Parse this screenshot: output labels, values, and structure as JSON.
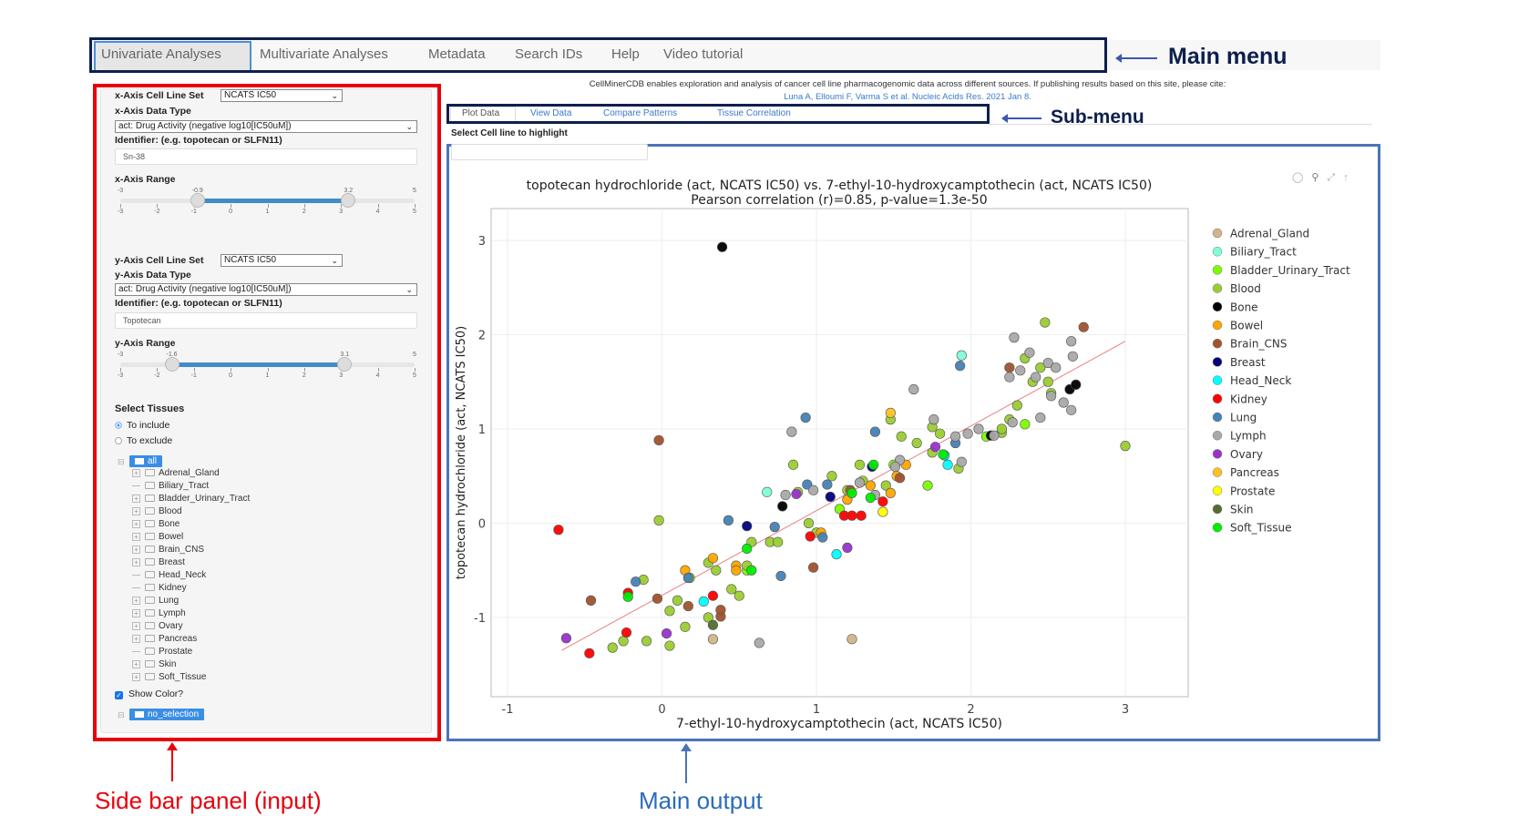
{
  "main_menu": {
    "items": [
      "Univariate Analyses",
      "Multivariate Analyses",
      "Metadata",
      "Search IDs",
      "Help",
      "Video tutorial"
    ],
    "active": "Univariate Analyses"
  },
  "annotations": {
    "main_menu": "Main menu",
    "sub_menu": "Sub-menu",
    "sidebar": "Side bar panel (input)",
    "main_output": "Main output",
    "colors": {
      "navy": "#0e1f4d",
      "red": "#e8000b",
      "blue": "#4a74b8"
    }
  },
  "header": {
    "citation_text": "CellMinerCDB enables exploration and analysis of cancer cell line pharmacogenomic data across different sources. If publishing results based on this site, please cite:",
    "citation_link": "Luna A, Elloumi F, Varma S et al. Nucleic Acids Res. 2021 Jan 8."
  },
  "sidebar": {
    "x": {
      "cell_line_set_label": "x-Axis Cell Line Set",
      "cell_line_set_value": "NCATS IC50",
      "data_type_label": "x-Axis Data Type",
      "data_type_value": "act: Drug Activity (negative log10[IC50uM])",
      "identifier_label": "Identifier: (e.g. topotecan or SLFN11)",
      "identifier_value": "Sn-38",
      "range_label": "x-Axis Range",
      "range": {
        "min": -3,
        "max": 5,
        "from": -0.9,
        "to": 3.2,
        "min_label": "-3",
        "max_label": "5",
        "from_label": "-0.9",
        "to_label": "3.2"
      }
    },
    "y": {
      "cell_line_set_label": "y-Axis Cell Line Set",
      "cell_line_set_value": "NCATS IC50",
      "data_type_label": "y-Axis Data Type",
      "data_type_value": "act: Drug Activity (negative log10[IC50uM])",
      "identifier_label": "Identifier: (e.g. topotecan or SLFN11)",
      "identifier_value": "Topotecan",
      "range_label": "y-Axis Range",
      "range": {
        "min": -3,
        "max": 5,
        "from": -1.6,
        "to": 3.1,
        "min_label": "-3",
        "max_label": "5",
        "from_label": "-1.6",
        "to_label": "3.1"
      }
    },
    "slider_ticks": [
      "-3",
      "-2",
      "-1",
      "0",
      "1",
      "2",
      "3",
      "4",
      "5"
    ],
    "select_tissues_label": "Select Tissues",
    "radio": [
      {
        "label": "To include",
        "checked": true
      },
      {
        "label": "To exclude",
        "checked": false
      }
    ],
    "tree_root": "all",
    "tree_items": [
      {
        "label": "Adrenal_Gland",
        "expandable": true
      },
      {
        "label": "Biliary_Tract",
        "expandable": false
      },
      {
        "label": "Bladder_Urinary_Tract",
        "expandable": true
      },
      {
        "label": "Blood",
        "expandable": true
      },
      {
        "label": "Bone",
        "expandable": true
      },
      {
        "label": "Bowel",
        "expandable": true
      },
      {
        "label": "Brain_CNS",
        "expandable": true
      },
      {
        "label": "Breast",
        "expandable": true
      },
      {
        "label": "Head_Neck",
        "expandable": false
      },
      {
        "label": "Kidney",
        "expandable": false
      },
      {
        "label": "Lung",
        "expandable": true
      },
      {
        "label": "Lymph",
        "expandable": true
      },
      {
        "label": "Ovary",
        "expandable": true
      },
      {
        "label": "Pancreas",
        "expandable": true
      },
      {
        "label": "Prostate",
        "expandable": false
      },
      {
        "label": "Skin",
        "expandable": true
      },
      {
        "label": "Soft_Tissue",
        "expandable": true
      }
    ],
    "show_color_label": "Show Color?",
    "show_color_checked": true,
    "highlight_root": "no_selection"
  },
  "sub_menu": {
    "tabs": [
      "Plot Data",
      "View Data",
      "Compare Patterns",
      "Tissue Correlation"
    ],
    "active": "Plot Data"
  },
  "highlight": {
    "label": "Select Cell line to highlight",
    "value": ""
  },
  "modebar": [
    "camera-icon",
    "zoom-icon",
    "autoscale-icon",
    "reset-icon"
  ],
  "chart_data": {
    "type": "scatter",
    "title": "topotecan hydrochloride (act, NCATS IC50) vs. 7-ethyl-10-hydroxycamptothecin (act, NCATS IC50)",
    "subtitle": "Pearson correlation (r)=0.85, p-value=1.3e-50",
    "xlabel": "7-ethyl-10-hydroxycamptothecin (act, NCATS IC50)",
    "ylabel": "topotecan hydrochloride (act, NCATS IC50)",
    "xlim": [
      -1.1,
      3.4
    ],
    "ylim": [
      -1.8,
      3.3
    ],
    "xticks": [
      -1,
      0,
      1,
      2,
      3
    ],
    "yticks": [
      -1,
      0,
      1,
      2,
      3
    ],
    "grid": true,
    "legend_position": "right",
    "regression_line": [
      [
        -0.65,
        -1.35
      ],
      [
        3.0,
        1.93
      ]
    ],
    "regression_color": "#e88080",
    "series": [
      {
        "name": "Adrenal_Gland",
        "color": "#d2b48c",
        "points": [
          [
            0.33,
            -1.23
          ],
          [
            1.23,
            -1.23
          ]
        ]
      },
      {
        "name": "Biliary_Tract",
        "color": "#7fffd4",
        "points": [
          [
            0.68,
            0.33
          ],
          [
            1.94,
            1.78
          ]
        ]
      },
      {
        "name": "Bladder_Urinary_Tract",
        "color": "#7cfc00",
        "points": [
          [
            2.1,
            0.92
          ],
          [
            1.72,
            0.4
          ],
          [
            1.5,
            0.62
          ],
          [
            1.15,
            0.15
          ],
          [
            0.55,
            -0.5
          ],
          [
            2.35,
            1.05
          ]
        ]
      },
      {
        "name": "Blood",
        "color": "#9acd32",
        "points": [
          [
            -0.02,
            0.03
          ],
          [
            2.48,
            2.13
          ],
          [
            3.0,
            0.82
          ],
          [
            0.3,
            -1.0
          ],
          [
            -0.1,
            -1.25
          ],
          [
            -0.25,
            -1.25
          ],
          [
            0.15,
            -1.1
          ],
          [
            0.05,
            -0.93
          ],
          [
            0.45,
            -0.7
          ],
          [
            0.5,
            -0.77
          ],
          [
            0.35,
            -0.5
          ],
          [
            0.85,
            0.62
          ],
          [
            0.58,
            -0.2
          ],
          [
            0.7,
            -0.2
          ],
          [
            1.0,
            -0.1
          ],
          [
            0.88,
            0.33
          ],
          [
            1.1,
            0.5
          ],
          [
            1.3,
            0.45
          ],
          [
            1.2,
            0.35
          ],
          [
            1.48,
            1.1
          ],
          [
            1.55,
            0.92
          ],
          [
            1.28,
            0.62
          ],
          [
            1.45,
            0.4
          ],
          [
            1.65,
            0.85
          ],
          [
            1.75,
            0.75
          ],
          [
            1.8,
            0.95
          ],
          [
            1.75,
            1.02
          ],
          [
            1.92,
            0.58
          ],
          [
            2.2,
            0.96
          ],
          [
            2.25,
            1.1
          ],
          [
            2.3,
            1.25
          ],
          [
            2.4,
            1.5
          ],
          [
            2.5,
            1.5
          ],
          [
            2.35,
            1.75
          ],
          [
            2.45,
            1.65
          ],
          [
            2.52,
            1.38
          ],
          [
            0.18,
            -0.58
          ],
          [
            -0.12,
            -0.6
          ],
          [
            0.75,
            -0.2
          ],
          [
            0.55,
            -0.45
          ],
          [
            0.3,
            -0.42
          ],
          [
            0.1,
            -0.82
          ],
          [
            0.95,
            0.0
          ],
          [
            0.05,
            -1.3
          ],
          [
            -0.32,
            -1.32
          ],
          [
            2.2,
            1.0
          ]
        ]
      },
      {
        "name": "Bone",
        "color": "#000000",
        "points": [
          [
            0.39,
            2.93
          ],
          [
            2.64,
            1.42
          ],
          [
            2.68,
            1.47
          ],
          [
            2.13,
            0.93
          ],
          [
            0.78,
            0.18
          ]
        ]
      },
      {
        "name": "Bowel",
        "color": "#ffa500",
        "points": [
          [
            0.33,
            -0.37
          ],
          [
            0.48,
            -0.45
          ],
          [
            0.48,
            -0.5
          ],
          [
            1.03,
            -0.1
          ],
          [
            1.35,
            0.4
          ],
          [
            1.48,
            0.32
          ],
          [
            1.52,
            0.5
          ],
          [
            1.2,
            0.25
          ],
          [
            1.58,
            0.62
          ],
          [
            0.15,
            -0.5
          ]
        ]
      },
      {
        "name": "Brain_CNS",
        "color": "#a0522d",
        "points": [
          [
            -0.02,
            0.88
          ],
          [
            2.73,
            2.08
          ],
          [
            -0.46,
            -0.82
          ],
          [
            -0.03,
            -0.8
          ],
          [
            0.17,
            -0.88
          ],
          [
            0.38,
            -0.99
          ],
          [
            0.38,
            -0.92
          ],
          [
            1.54,
            0.48
          ],
          [
            0.98,
            -0.47
          ],
          [
            2.25,
            1.65
          ],
          [
            1.22,
            0.35
          ]
        ]
      },
      {
        "name": "Breast",
        "color": "#000080",
        "points": [
          [
            1.09,
            0.28
          ],
          [
            0.55,
            -0.03
          ],
          [
            1.36,
            0.6
          ]
        ]
      },
      {
        "name": "Head_Neck",
        "color": "#00ffff",
        "points": [
          [
            0.27,
            -0.83
          ],
          [
            1.13,
            -0.33
          ],
          [
            1.83,
            0.72
          ],
          [
            1.85,
            0.62
          ]
        ]
      },
      {
        "name": "Kidney",
        "color": "#ff0000",
        "points": [
          [
            -0.67,
            -0.07
          ],
          [
            -0.47,
            -1.38
          ],
          [
            -0.23,
            -1.16
          ],
          [
            -0.22,
            -0.74
          ],
          [
            0.33,
            -0.77
          ],
          [
            1.18,
            0.08
          ],
          [
            1.23,
            0.08
          ],
          [
            1.29,
            0.08
          ],
          [
            1.43,
            0.23
          ],
          [
            0.96,
            -0.14
          ]
        ]
      },
      {
        "name": "Lung",
        "color": "#4682b4",
        "points": [
          [
            0.93,
            1.12
          ],
          [
            -0.17,
            -0.62
          ],
          [
            0.17,
            -0.58
          ],
          [
            0.43,
            0.03
          ],
          [
            0.73,
            -0.04
          ],
          [
            0.94,
            0.41
          ],
          [
            1.07,
            0.41
          ],
          [
            1.38,
            0.97
          ],
          [
            1.93,
            1.67
          ],
          [
            0.77,
            -0.56
          ],
          [
            1.04,
            -0.15
          ],
          [
            1.9,
            0.85
          ]
        ]
      },
      {
        "name": "Lymph",
        "color": "#a9a9a9",
        "points": [
          [
            0.84,
            0.97
          ],
          [
            0.63,
            -1.27
          ],
          [
            2.28,
            1.97
          ],
          [
            2.38,
            1.81
          ],
          [
            2.65,
            1.93
          ],
          [
            2.66,
            1.77
          ],
          [
            2.5,
            1.7
          ],
          [
            2.42,
            1.55
          ],
          [
            2.25,
            1.55
          ],
          [
            2.32,
            1.62
          ],
          [
            2.52,
            1.35
          ],
          [
            2.65,
            1.2
          ],
          [
            2.27,
            1.07
          ],
          [
            2.45,
            1.12
          ],
          [
            2.15,
            0.93
          ],
          [
            1.63,
            1.42
          ],
          [
            1.54,
            0.67
          ],
          [
            1.28,
            0.43
          ],
          [
            1.38,
            0.3
          ],
          [
            1.51,
            0.6
          ],
          [
            1.76,
            1.1
          ],
          [
            1.9,
            0.92
          ],
          [
            1.94,
            0.65
          ],
          [
            0.98,
            0.35
          ],
          [
            0.8,
            0.3
          ],
          [
            1.98,
            0.95
          ],
          [
            2.05,
            1.0
          ],
          [
            2.55,
            1.65
          ],
          [
            2.6,
            1.28
          ]
        ]
      },
      {
        "name": "Ovary",
        "color": "#9932cc",
        "points": [
          [
            -0.62,
            -1.22
          ],
          [
            0.03,
            -1.17
          ],
          [
            0.87,
            0.31
          ],
          [
            1.2,
            -0.26
          ],
          [
            1.77,
            0.81
          ]
        ]
      },
      {
        "name": "Pancreas",
        "color": "#ffc125",
        "points": [
          [
            1.48,
            1.17
          ]
        ]
      },
      {
        "name": "Prostate",
        "color": "#ffff00",
        "points": [
          [
            1.43,
            0.12
          ]
        ]
      },
      {
        "name": "Skin",
        "color": "#556b2f",
        "points": [
          [
            0.33,
            -1.08
          ]
        ]
      },
      {
        "name": "Soft_Tissue",
        "color": "#00ee00",
        "points": [
          [
            -0.22,
            -0.78
          ],
          [
            0.55,
            -0.27
          ],
          [
            0.58,
            -0.5
          ],
          [
            1.37,
            0.62
          ],
          [
            1.23,
            0.32
          ],
          [
            1.82,
            0.73
          ],
          [
            1.35,
            0.27
          ]
        ]
      }
    ]
  }
}
